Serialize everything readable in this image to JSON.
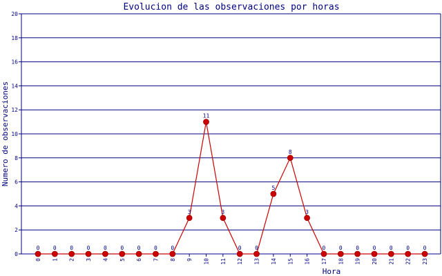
{
  "chart_data": {
    "type": "line",
    "title": "Evolucion de las observaciones por horas",
    "xlabel": "Hora",
    "ylabel": "Numero de observaciones",
    "categories": [
      "0",
      "1",
      "2",
      "3",
      "4",
      "5",
      "6",
      "7",
      "8",
      "9",
      "10",
      "11",
      "12",
      "13",
      "14",
      "15",
      "16",
      "17",
      "18",
      "19",
      "20",
      "21",
      "22",
      "23"
    ],
    "values": [
      0,
      0,
      0,
      0,
      0,
      0,
      0,
      0,
      0,
      3,
      11,
      3,
      0,
      0,
      5,
      8,
      3,
      0,
      0,
      0,
      0,
      0,
      0,
      0
    ],
    "ylim": [
      0,
      20
    ],
    "yticks": [
      0,
      2,
      4,
      6,
      8,
      10,
      12,
      14,
      16,
      18,
      20
    ],
    "grid": true,
    "data_labels": true,
    "colors": {
      "line": "#cc0000",
      "marker": "#cc0000",
      "grid": "#000080",
      "axis": "#000080",
      "text": "#000080"
    }
  }
}
